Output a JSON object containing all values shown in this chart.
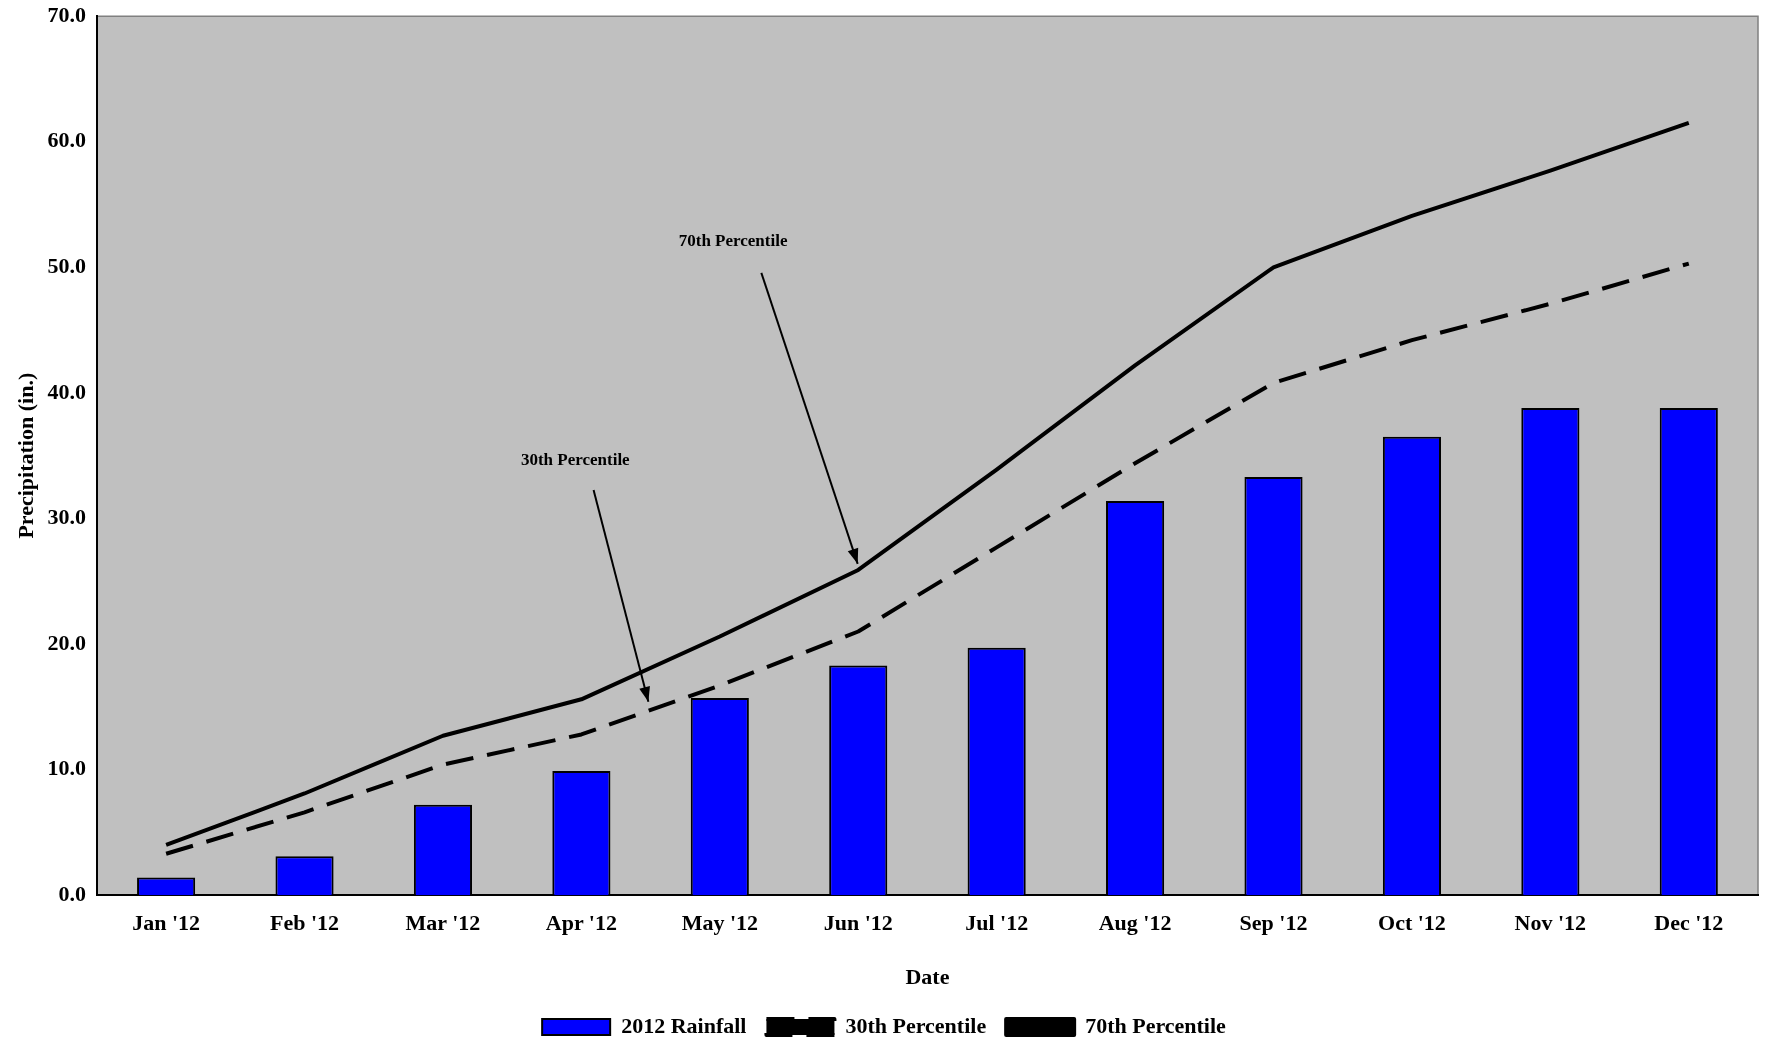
{
  "chart_data": {
    "type": "bar",
    "xlabel": "Date",
    "ylabel": "Precipitation (in.)",
    "categories": [
      "Jan '12",
      "Feb '12",
      "Mar '12",
      "Apr '12",
      "May '12",
      "Jun '12",
      "Jul '12",
      "Aug '12",
      "Sep '12",
      "Oct '12",
      "Nov '12",
      "Dec '12"
    ],
    "series": [
      {
        "name": "2012 Rainfall",
        "color": "#0000ff",
        "values": [
          1.4,
          3.1,
          7.2,
          9.9,
          15.7,
          18.3,
          19.7,
          31.4,
          33.3,
          36.5,
          38.8,
          38.8
        ]
      },
      {
        "name": "30th Percentile",
        "type": "line",
        "line_style": "dashed",
        "color": "#000000",
        "values": [
          3.3,
          6.6,
          10.4,
          12.8,
          16.7,
          21.0,
          27.7,
          34.4,
          40.8,
          44.2,
          47.1,
          50.3
        ]
      },
      {
        "name": "70th Percentile",
        "type": "line",
        "line_style": "solid",
        "color": "#000000",
        "values": [
          4.0,
          8.1,
          12.7,
          15.6,
          20.6,
          25.9,
          33.9,
          42.2,
          50.0,
          54.1,
          57.7,
          61.5
        ]
      }
    ],
    "ylim": [
      0,
      70
    ],
    "yticks": [
      {
        "value": 0,
        "label": "0.0"
      },
      {
        "value": 10,
        "label": "10.0"
      },
      {
        "value": 20,
        "label": "20.0"
      },
      {
        "value": 30,
        "label": "30.0"
      },
      {
        "value": 40,
        "label": "40.0"
      },
      {
        "value": 50,
        "label": "50.0"
      },
      {
        "value": 60,
        "label": "60.0"
      },
      {
        "value": 70,
        "label": "70.0"
      }
    ],
    "annotations": [
      "30th Percentile",
      "70th Percentile"
    ],
    "legend": "bottom",
    "grid": false,
    "marker": "none"
  }
}
